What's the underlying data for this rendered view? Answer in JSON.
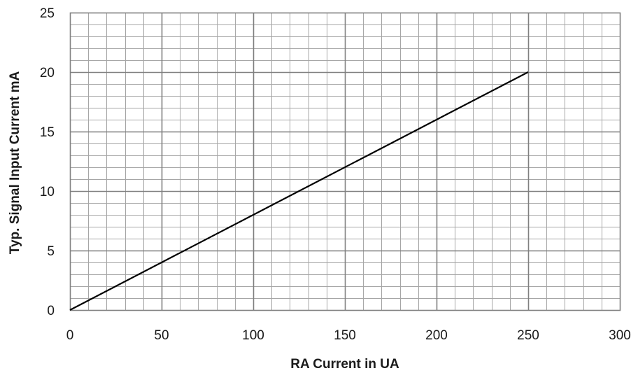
{
  "chart_data": {
    "type": "line",
    "title": "",
    "xlabel": "RA Current in UA",
    "ylabel": "Typ.  Signal Input Current   mA",
    "xlim": [
      0,
      300
    ],
    "ylim": [
      0,
      25
    ],
    "x_ticks": [
      "0",
      "50",
      "100",
      "150",
      "200",
      "250",
      "300"
    ],
    "y_ticks": [
      "0",
      "5",
      "10",
      "15",
      "20",
      "25"
    ],
    "x_major_step": 50,
    "x_minor_step": 10,
    "y_major_step": 5,
    "y_minor_step": 1,
    "grid": true,
    "legend": "none",
    "series": [
      {
        "x": [
          0,
          250
        ],
        "y": [
          0,
          20
        ],
        "color": "#000000"
      }
    ],
    "colors": {
      "major_grid": "#808080",
      "minor_grid": "#a6a6a6",
      "line": "#000000"
    }
  }
}
